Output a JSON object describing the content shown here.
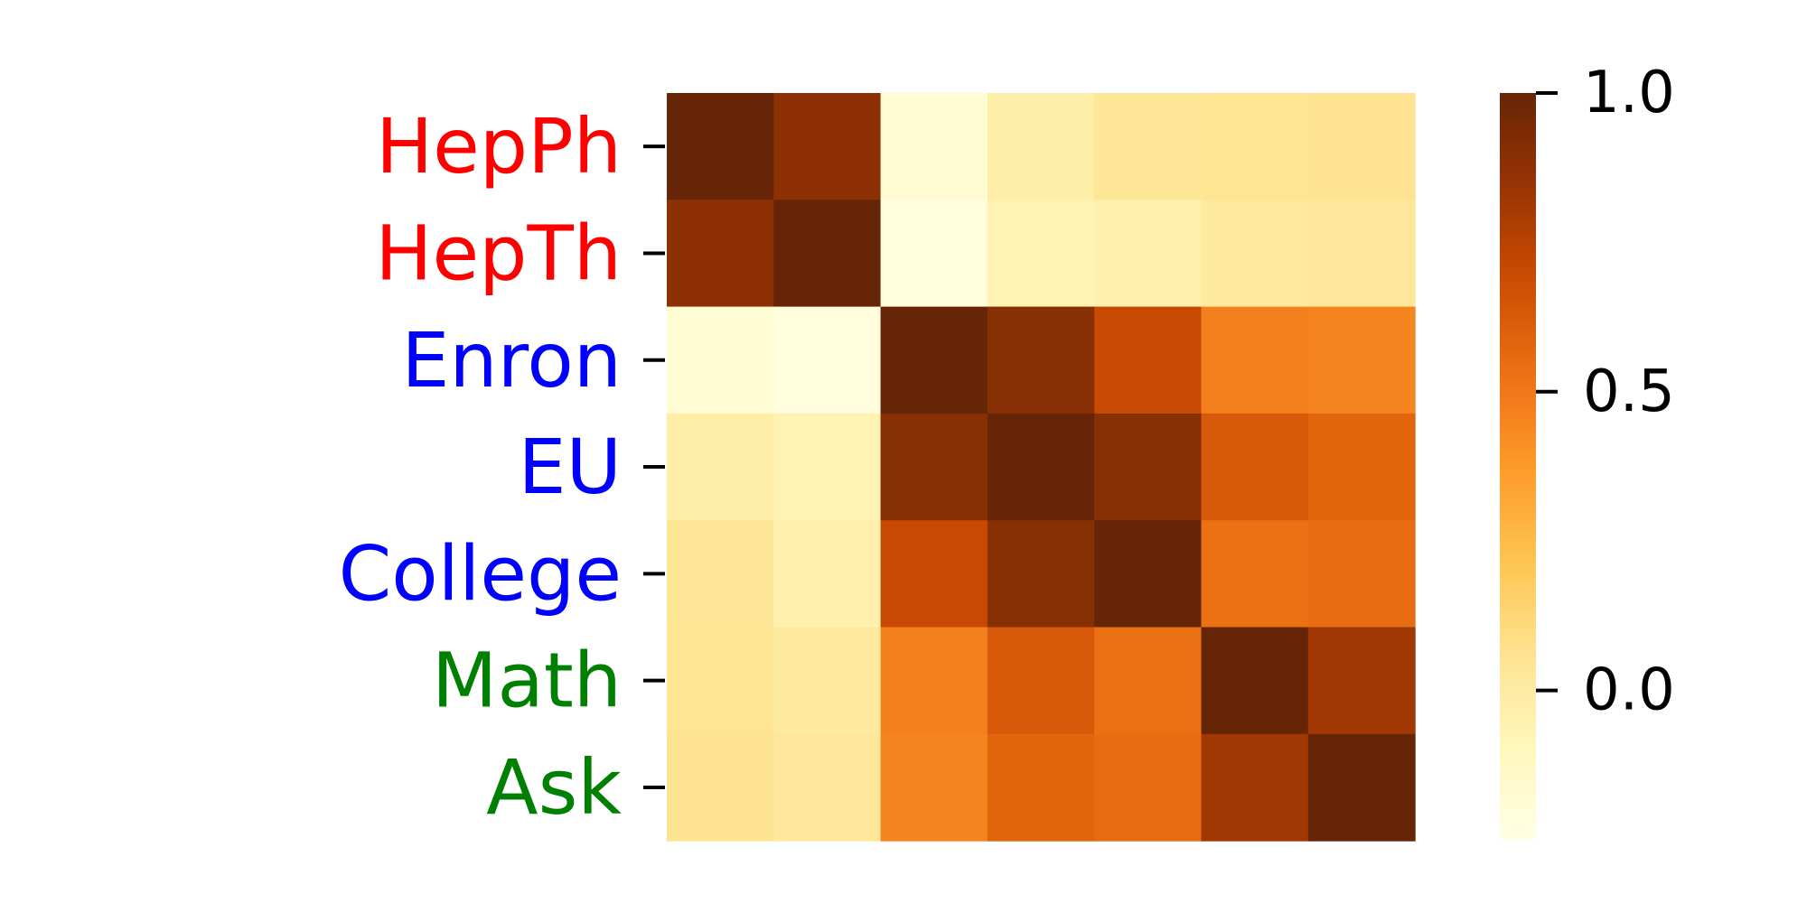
{
  "chart_data": {
    "type": "heatmap",
    "title": "",
    "xlabel": "",
    "ylabel": "",
    "rows": [
      "HepPh",
      "HepTh",
      "Enron",
      "EU",
      "College",
      "Math",
      "Ask"
    ],
    "columns": [
      "HepPh",
      "HepTh",
      "Enron",
      "EU",
      "College",
      "Math",
      "Ask"
    ],
    "show_column_labels": false,
    "row_label_colors": [
      "#ff0000",
      "#ff0000",
      "#0000ff",
      "#0000ff",
      "#0000ff",
      "#008000",
      "#008000"
    ],
    "values": [
      [
        1.0,
        0.88,
        -0.18,
        -0.02,
        0.04,
        0.05,
        0.06
      ],
      [
        0.88,
        1.0,
        -0.22,
        -0.06,
        -0.04,
        0.01,
        0.03
      ],
      [
        -0.18,
        -0.22,
        1.0,
        0.9,
        0.7,
        0.47,
        0.45
      ],
      [
        -0.02,
        -0.06,
        0.9,
        1.0,
        0.9,
        0.63,
        0.58
      ],
      [
        0.04,
        -0.04,
        0.7,
        0.9,
        1.0,
        0.53,
        0.55
      ],
      [
        0.05,
        0.01,
        0.47,
        0.63,
        0.53,
        1.0,
        0.82
      ],
      [
        0.06,
        0.03,
        0.45,
        0.58,
        0.55,
        0.82,
        1.0
      ]
    ],
    "colormap": "YlOrBr",
    "vmin": -0.25,
    "vmax": 1.0,
    "colorbar": {
      "ticks": [
        1.0,
        0.5,
        0.0
      ],
      "tick_labels": [
        "1.0",
        "0.5",
        "0.0"
      ]
    }
  }
}
